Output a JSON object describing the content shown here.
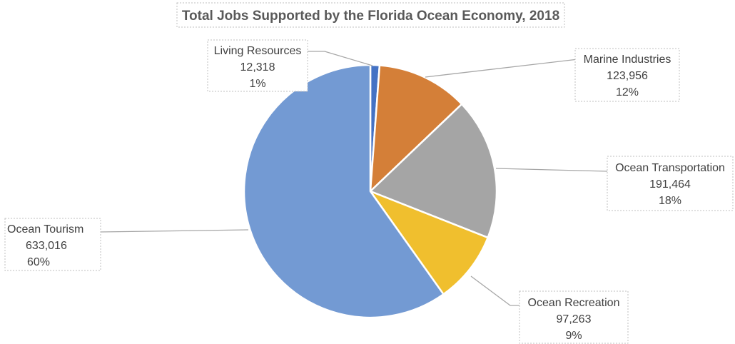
{
  "chart_data": {
    "type": "pie",
    "title": "Total Jobs Supported by the Florida Ocean Economy, 2018",
    "slices": [
      {
        "name": "Living Resources",
        "value_label": "12,318",
        "pct_label": "1%",
        "value": 12318,
        "color": "#4472c4"
      },
      {
        "name": "Marine Industries",
        "value_label": "123,956",
        "pct_label": "12%",
        "value": 123956,
        "color": "#d47f38"
      },
      {
        "name": "Ocean Transportation",
        "value_label": "191,464",
        "pct_label": "18%",
        "value": 191464,
        "color": "#a5a5a5"
      },
      {
        "name": "Ocean Recreation",
        "value_label": "97,263",
        "pct_label": "9%",
        "value": 97263,
        "color": "#f0bf2e"
      },
      {
        "name": "Ocean Tourism",
        "value_label": "633,016",
        "pct_label": "60%",
        "value": 633016,
        "color": "#739ad3"
      }
    ],
    "start_angle_deg": 0,
    "direction": "clockwise",
    "legend": "none"
  }
}
